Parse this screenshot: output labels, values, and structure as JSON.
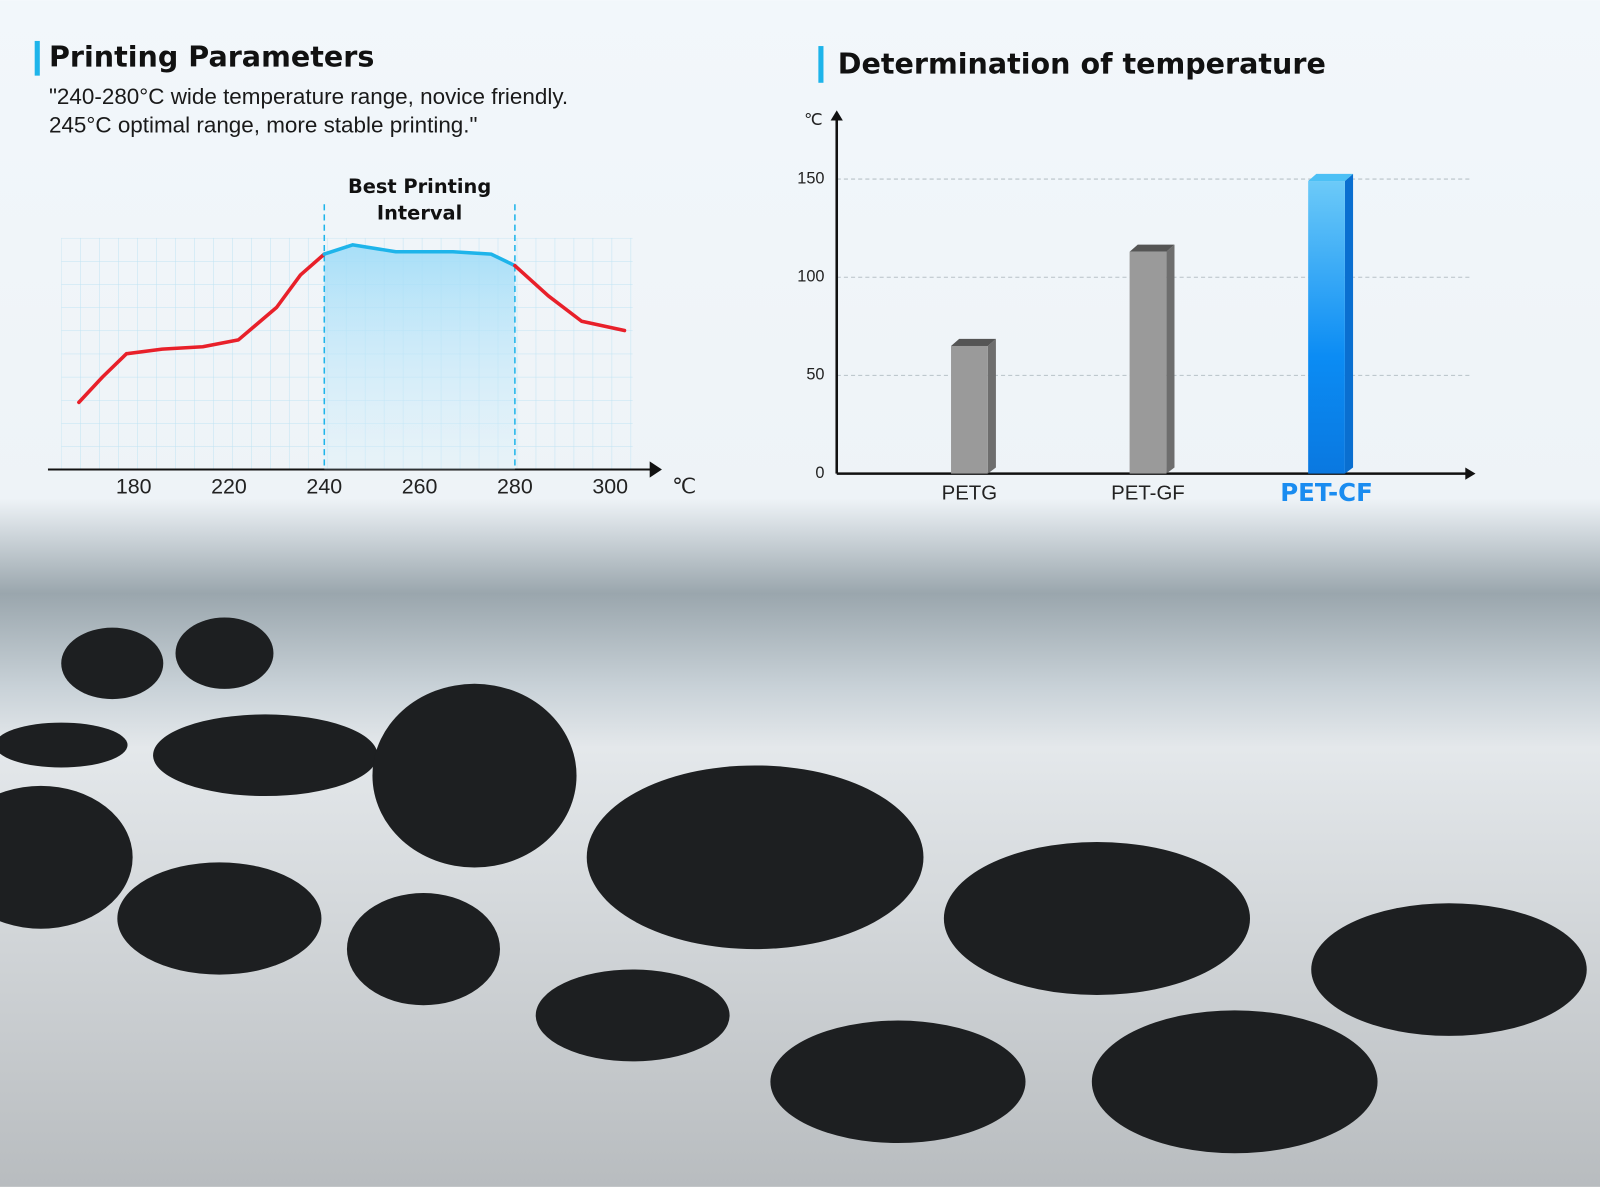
{
  "chart_data": [
    {
      "type": "line",
      "title": "Printing Parameters",
      "subtitle": [
        "\"240-280°C wide temperature range, novice friendly.",
        "245°C optimal range, more stable printing.\""
      ],
      "annotation": "Best Printing Interval",
      "interval": [
        240,
        280
      ],
      "xlabel": "℃",
      "xlim": [
        150,
        310
      ],
      "xticks": [
        180,
        220,
        240,
        260,
        280,
        300
      ],
      "ylim": [
        0,
        10
      ],
      "x": [
        157,
        167,
        177,
        192,
        209,
        222,
        230,
        235,
        240,
        246,
        255,
        267,
        275,
        280,
        287,
        294,
        303
      ],
      "values": [
        2.9,
        4.0,
        5.0,
        5.2,
        5.3,
        5.6,
        7.0,
        8.4,
        9.3,
        9.7,
        9.4,
        9.4,
        9.3,
        8.8,
        7.5,
        6.4,
        6.0
      ],
      "color": "#e8202a",
      "interval_color": "#1eb4ea",
      "grid": true
    },
    {
      "type": "bar",
      "title": "Determination of temperature",
      "ylabel": "℃",
      "categories": [
        "PETG",
        "PET-GF",
        "PET-CF"
      ],
      "values": [
        65,
        113,
        149
      ],
      "colors": [
        "#9a9a9a",
        "#9a9a9a",
        "#1a8cf0"
      ],
      "highlight": 2,
      "ylim": [
        0,
        185
      ],
      "yticks": [
        0,
        50,
        100,
        150
      ],
      "grid": true
    }
  ]
}
